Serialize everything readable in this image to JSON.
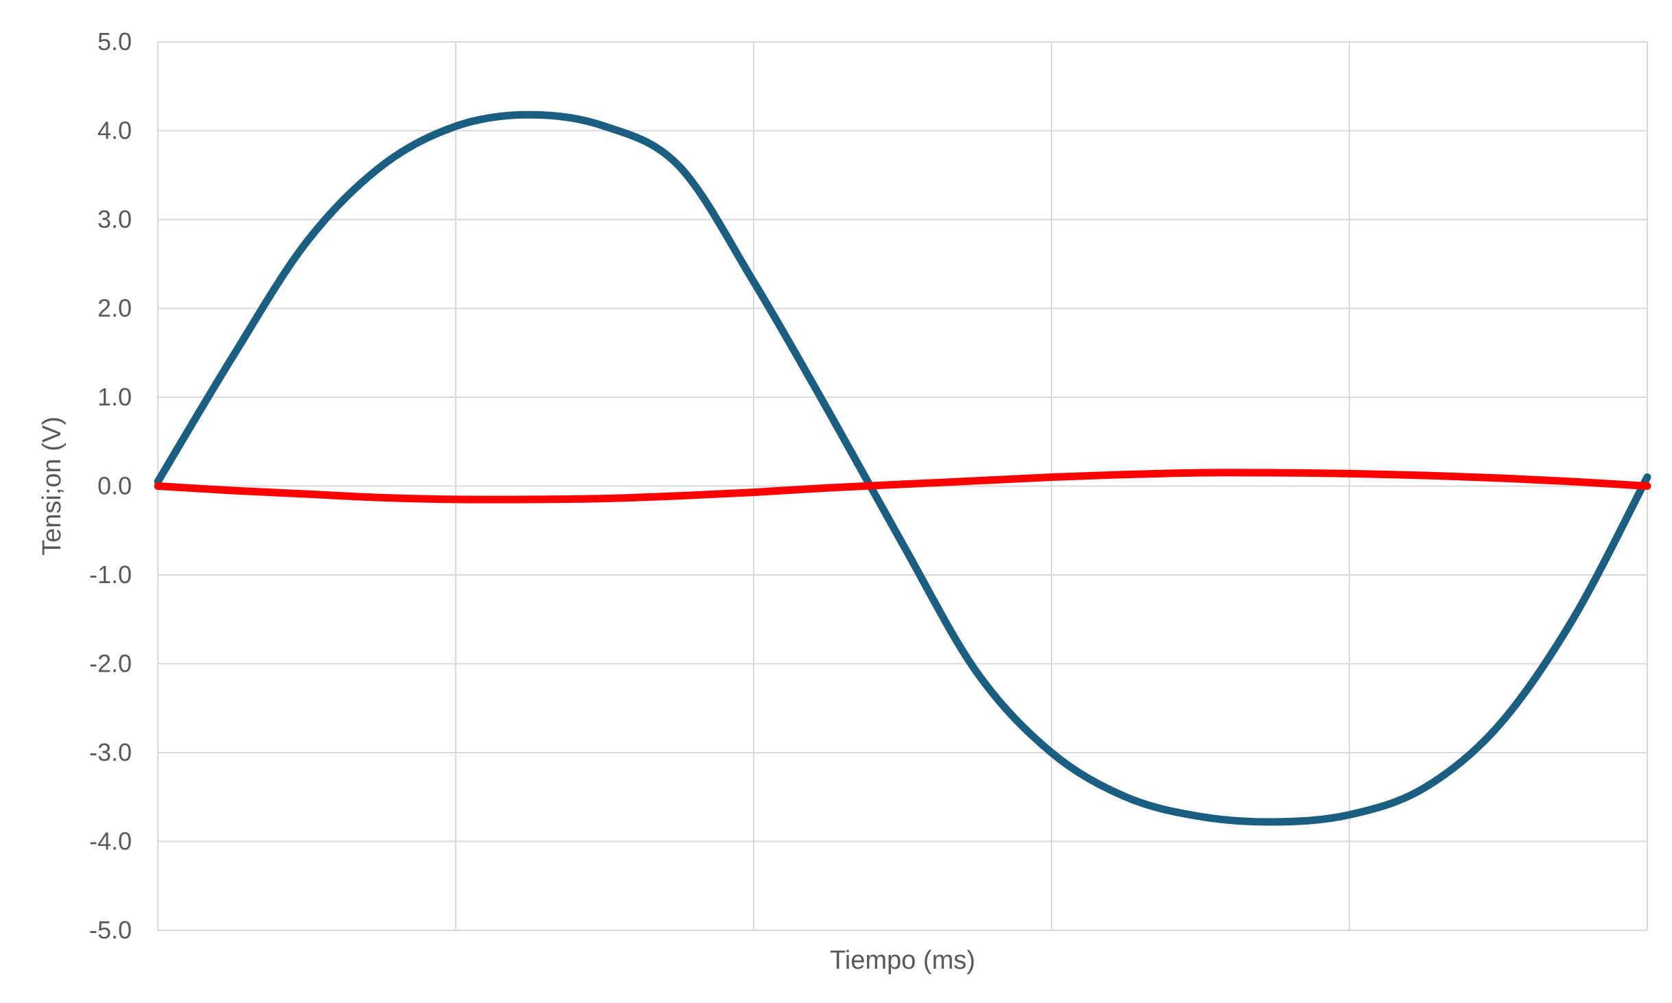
{
  "chart_data": {
    "type": "line",
    "title": "",
    "xlabel": "Tiempo (ms)",
    "ylabel": "Tensi;on (V)",
    "ylim": [
      -5.0,
      5.0
    ],
    "xlim": [
      0,
      5
    ],
    "yticks": [
      "5.0",
      "4.0",
      "3.0",
      "2.0",
      "1.0",
      "0.0",
      "-1.0",
      "-2.0",
      "-3.0",
      "-4.0",
      "-5.0"
    ],
    "ytick_values": [
      5,
      4,
      3,
      2,
      1,
      0,
      -1,
      -2,
      -3,
      -4,
      -5
    ],
    "x_gridlines": [
      0,
      1,
      2,
      3,
      4,
      5
    ],
    "grid": true,
    "legend": "none",
    "x": [
      0,
      0.25,
      0.5,
      0.75,
      1.0,
      1.25,
      1.5,
      1.75,
      2.0,
      2.25,
      2.5,
      2.75,
      3.0,
      3.25,
      3.5,
      3.75,
      4.0,
      4.25,
      4.5,
      4.75,
      5.0
    ],
    "series": [
      {
        "color": "#1a5f82",
        "values": [
          0.05,
          1.45,
          2.75,
          3.6,
          4.05,
          4.18,
          4.05,
          3.6,
          2.3,
          0.85,
          -0.65,
          -2.1,
          -3.0,
          -3.5,
          -3.72,
          -3.78,
          -3.7,
          -3.4,
          -2.7,
          -1.5,
          0.1
        ]
      },
      {
        "color": "#ff0000",
        "values": [
          0.0,
          -0.05,
          -0.09,
          -0.13,
          -0.15,
          -0.15,
          -0.14,
          -0.11,
          -0.07,
          -0.02,
          0.02,
          0.06,
          0.1,
          0.13,
          0.15,
          0.15,
          0.14,
          0.12,
          0.09,
          0.05,
          0.0
        ]
      }
    ]
  }
}
